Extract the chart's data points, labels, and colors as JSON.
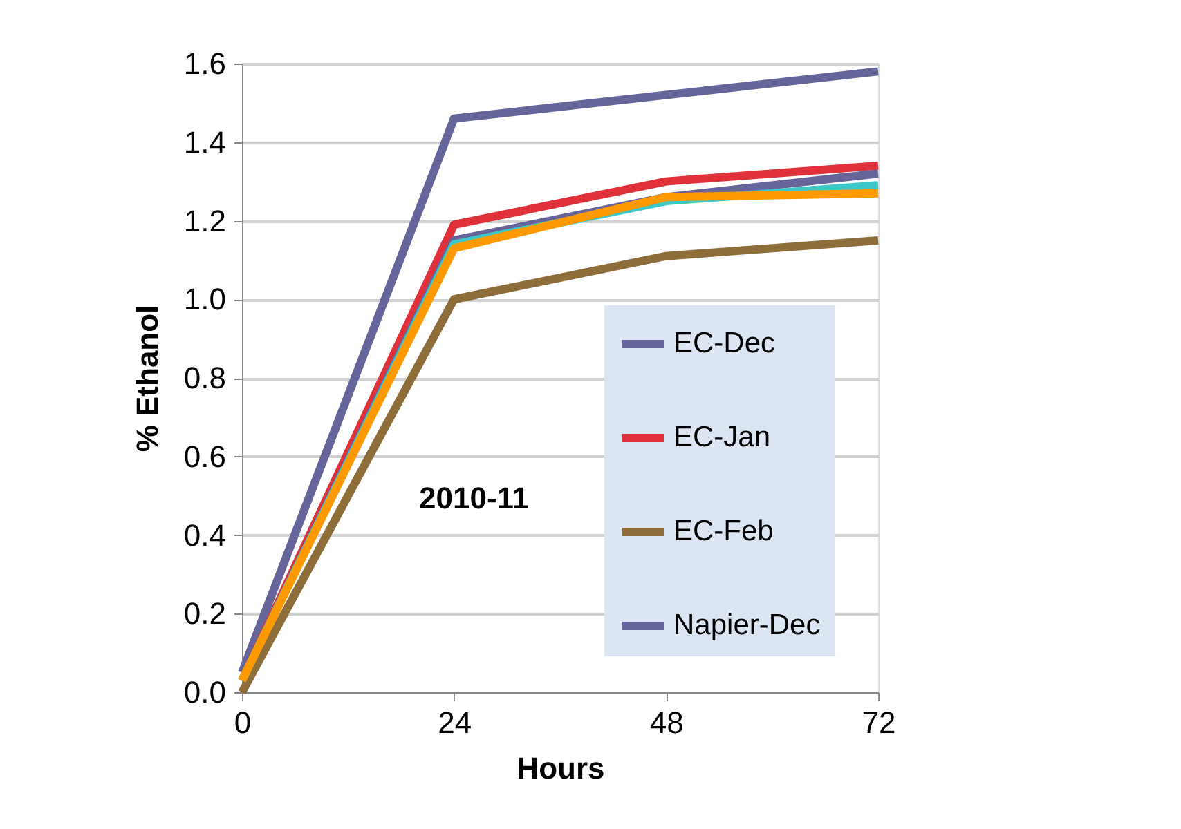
{
  "chart_data": {
    "type": "line",
    "xlabel": "Hours",
    "ylabel": "% Ethanol",
    "x": [
      0,
      24,
      48,
      72
    ],
    "series": [
      {
        "name": "EC-Dec",
        "color": "#65659a",
        "values": [
          0.05,
          1.46,
          1.52,
          1.58
        ]
      },
      {
        "name": "EC-Jan",
        "color": "#e0303a",
        "values": [
          0.03,
          1.19,
          1.3,
          1.34
        ]
      },
      {
        "name": "EC-Feb",
        "color": "#8d6e3a",
        "values": [
          0.0,
          1.0,
          1.11,
          1.15
        ]
      },
      {
        "name": "Napier-Dec",
        "color": "#65659a",
        "values": [
          0.03,
          1.15,
          1.26,
          1.32
        ]
      },
      {
        "color": "#3cc8c8",
        "values": [
          0.03,
          1.14,
          1.25,
          1.29
        ]
      },
      {
        "color": "#ff9900",
        "values": [
          0.03,
          1.13,
          1.26,
          1.27
        ]
      }
    ],
    "xlim": [
      0,
      72
    ],
    "xticks": [
      0,
      24,
      48,
      72
    ],
    "ylim": [
      0,
      1.6
    ],
    "yticks": [
      {
        "value": 0,
        "label": "0.0"
      },
      0.2,
      0.4,
      0.6,
      0.8,
      {
        "value": 1,
        "label": "1.0"
      },
      1.2,
      1.4,
      1.6
    ],
    "grid": "y",
    "legend": "right",
    "marker": "none",
    "line_style": "solid",
    "annotations": [
      "2010-11"
    ]
  }
}
